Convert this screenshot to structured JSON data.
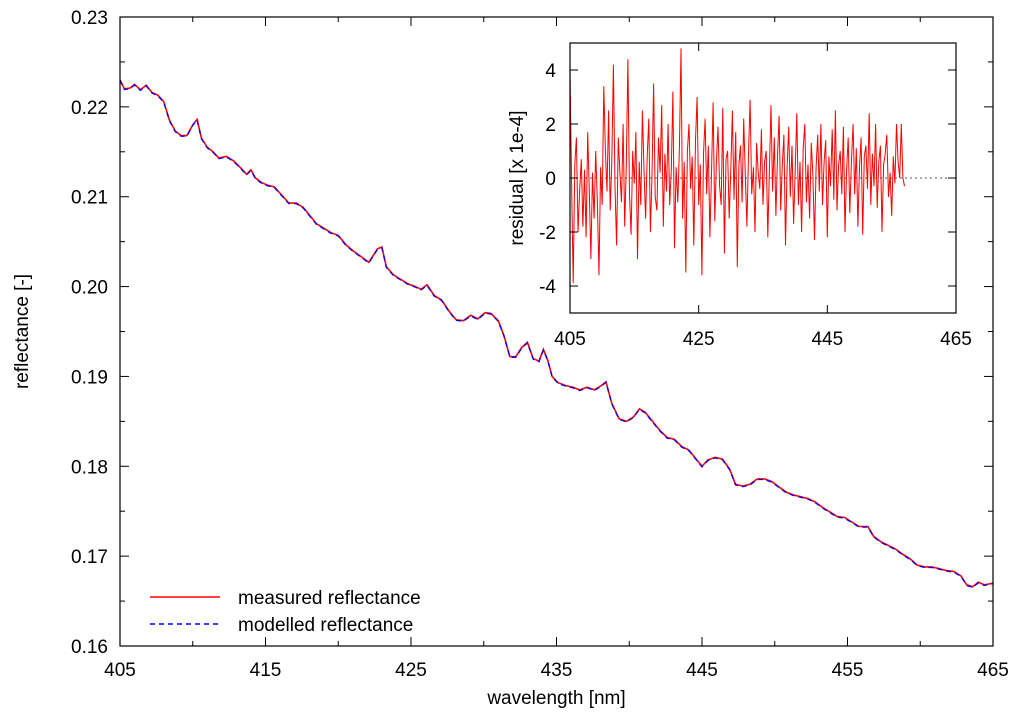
{
  "chart_data": [
    {
      "type": "line",
      "title": "",
      "xlabel": "wavelength [nm]",
      "ylabel": "reflectance  [-]",
      "xlim": [
        405,
        465
      ],
      "ylim": [
        0.16,
        0.23
      ],
      "x_ticks": [
        "405",
        "415",
        "425",
        "435",
        "445",
        "455",
        "465"
      ],
      "y_ticks": [
        "0.16",
        "0.17",
        "0.18",
        "0.19",
        "0.20",
        "0.21",
        "0.22",
        "0.23"
      ],
      "grid": false,
      "legend_position": "bottom-left",
      "colors": {
        "measured": "#ff0000",
        "modelled": "#0000ff"
      },
      "series": [
        {
          "name": "measured reflectance",
          "style": "solid",
          "color": "#ff0000",
          "points": [
            [
              405.0,
              0.223
            ],
            [
              405.3,
              0.222
            ],
            [
              405.7,
              0.2221
            ],
            [
              406.0,
              0.2225
            ],
            [
              406.4,
              0.2219
            ],
            [
              406.8,
              0.2224
            ],
            [
              407.2,
              0.2216
            ],
            [
              407.6,
              0.2213
            ],
            [
              408.0,
              0.2206
            ],
            [
              408.4,
              0.2185
            ],
            [
              408.8,
              0.2173
            ],
            [
              409.2,
              0.2168
            ],
            [
              409.6,
              0.2168
            ],
            [
              410.0,
              0.218
            ],
            [
              410.3,
              0.2186
            ],
            [
              410.6,
              0.2165
            ],
            [
              411.0,
              0.2155
            ],
            [
              411.4,
              0.215
            ],
            [
              411.8,
              0.2143
            ],
            [
              412.3,
              0.2145
            ],
            [
              412.8,
              0.214
            ],
            [
              413.3,
              0.2132
            ],
            [
              413.7,
              0.2125
            ],
            [
              414.0,
              0.213
            ],
            [
              414.3,
              0.2121
            ],
            [
              414.7,
              0.2116
            ],
            [
              415.1,
              0.2113
            ],
            [
              415.6,
              0.2111
            ],
            [
              416.1,
              0.2102
            ],
            [
              416.6,
              0.2093
            ],
            [
              417.1,
              0.2093
            ],
            [
              417.6,
              0.2088
            ],
            [
              418.1,
              0.2078
            ],
            [
              418.5,
              0.207
            ],
            [
              419.0,
              0.2065
            ],
            [
              419.5,
              0.206
            ],
            [
              420.0,
              0.2057
            ],
            [
              420.5,
              0.2047
            ],
            [
              421.0,
              0.204
            ],
            [
              421.6,
              0.2033
            ],
            [
              422.1,
              0.2027
            ],
            [
              422.7,
              0.2042
            ],
            [
              423.0,
              0.2044
            ],
            [
              423.3,
              0.2022
            ],
            [
              423.8,
              0.2013
            ],
            [
              424.3,
              0.2008
            ],
            [
              424.8,
              0.2003
            ],
            [
              425.3,
              0.2
            ],
            [
              425.7,
              0.1997
            ],
            [
              426.1,
              0.2002
            ],
            [
              426.6,
              0.199
            ],
            [
              427.1,
              0.1985
            ],
            [
              427.6,
              0.1973
            ],
            [
              428.1,
              0.1963
            ],
            [
              428.6,
              0.1962
            ],
            [
              429.1,
              0.1968
            ],
            [
              429.6,
              0.1964
            ],
            [
              430.1,
              0.1971
            ],
            [
              430.5,
              0.197
            ],
            [
              431.0,
              0.1962
            ],
            [
              431.4,
              0.1945
            ],
            [
              431.8,
              0.1922
            ],
            [
              432.2,
              0.1922
            ],
            [
              432.6,
              0.1932
            ],
            [
              433.0,
              0.1938
            ],
            [
              433.4,
              0.192
            ],
            [
              433.8,
              0.1917
            ],
            [
              434.1,
              0.193
            ],
            [
              434.4,
              0.1918
            ],
            [
              434.7,
              0.19
            ],
            [
              435.1,
              0.1893
            ],
            [
              435.6,
              0.189
            ],
            [
              436.1,
              0.1888
            ],
            [
              436.6,
              0.1885
            ],
            [
              437.1,
              0.1888
            ],
            [
              437.6,
              0.1885
            ],
            [
              438.1,
              0.189
            ],
            [
              438.4,
              0.1894
            ],
            [
              438.8,
              0.187
            ],
            [
              439.3,
              0.1853
            ],
            [
              439.8,
              0.185
            ],
            [
              440.3,
              0.1855
            ],
            [
              440.7,
              0.1864
            ],
            [
              441.1,
              0.186
            ],
            [
              441.6,
              0.185
            ],
            [
              442.1,
              0.184
            ],
            [
              442.6,
              0.1832
            ],
            [
              443.1,
              0.183
            ],
            [
              443.6,
              0.1822
            ],
            [
              444.1,
              0.1818
            ],
            [
              444.6,
              0.1808
            ],
            [
              445.0,
              0.18
            ],
            [
              445.4,
              0.1807
            ],
            [
              445.9,
              0.181
            ],
            [
              446.4,
              0.1808
            ],
            [
              446.9,
              0.1797
            ],
            [
              447.3,
              0.178
            ],
            [
              447.8,
              0.1778
            ],
            [
              448.3,
              0.178
            ],
            [
              448.8,
              0.1786
            ],
            [
              449.3,
              0.1786
            ],
            [
              449.8,
              0.1783
            ],
            [
              450.3,
              0.1777
            ],
            [
              450.8,
              0.1771
            ],
            [
              451.3,
              0.1768
            ],
            [
              451.8,
              0.1766
            ],
            [
              452.3,
              0.1764
            ],
            [
              452.8,
              0.176
            ],
            [
              453.3,
              0.1754
            ],
            [
              453.8,
              0.1749
            ],
            [
              454.3,
              0.1744
            ],
            [
              454.8,
              0.1743
            ],
            [
              455.3,
              0.1738
            ],
            [
              455.8,
              0.1733
            ],
            [
              456.4,
              0.1733
            ],
            [
              456.8,
              0.1722
            ],
            [
              457.3,
              0.1716
            ],
            [
              457.8,
              0.1712
            ],
            [
              458.3,
              0.1708
            ],
            [
              458.8,
              0.1702
            ],
            [
              459.3,
              0.1697
            ],
            [
              459.8,
              0.169
            ],
            [
              460.3,
              0.1688
            ],
            [
              460.8,
              0.1688
            ],
            [
              461.3,
              0.1686
            ],
            [
              461.8,
              0.1684
            ],
            [
              462.3,
              0.1683
            ],
            [
              462.8,
              0.1678
            ],
            [
              463.2,
              0.1668
            ],
            [
              463.6,
              0.1666
            ],
            [
              464.0,
              0.1671
            ],
            [
              464.4,
              0.1668
            ],
            [
              465.0,
              0.167
            ]
          ]
        },
        {
          "name": "modelled reflectance",
          "style": "dashed",
          "color": "#0000ff",
          "same_as": "measured reflectance"
        }
      ]
    },
    {
      "type": "line",
      "title": "",
      "xlabel": "",
      "ylabel": "residual  [x 1e-4]",
      "xlim": [
        405,
        465
      ],
      "ylim": [
        -5,
        5
      ],
      "x_ticks": [
        "405",
        "425",
        "445",
        "465"
      ],
      "y_ticks": [
        "4",
        "2",
        "0",
        "-2",
        "-4"
      ],
      "grid": false,
      "zero_line": "dotted",
      "series": [
        {
          "name": "",
          "color": "#ff0000",
          "values_x_start": 405,
          "values_x_step": 0.25,
          "values": [
            4.0,
            -0.2,
            -3.9,
            0.5,
            1.5,
            -2.0,
            -0.5,
            0.7,
            -1.8,
            0.3,
            -2.2,
            1.7,
            -0.5,
            -3.0,
            0.2,
            -1.5,
            1.0,
            -0.8,
            -3.6,
            0.4,
            -1.0,
            3.4,
            1.0,
            -0.5,
            2.5,
            -1.2,
            0.6,
            4.2,
            -0.3,
            -2.5,
            1.5,
            0.2,
            -0.9,
            2.0,
            -1.8,
            0.5,
            4.4,
            -0.6,
            -2.1,
            1.0,
            -0.2,
            1.7,
            -3.0,
            0.6,
            -1.0,
            2.5,
            0.3,
            -1.5,
            0.8,
            2.2,
            -2.0,
            0.1,
            3.5,
            -0.7,
            -1.2,
            1.5,
            0.2,
            2.7,
            -1.8,
            0.9,
            -0.5,
            2.0,
            -1.0,
            0.3,
            3.2,
            -2.6,
            0.4,
            -0.9,
            1.1,
            4.8,
            -1.5,
            0.6,
            -3.5,
            1.0,
            2.0,
            -0.4,
            0.8,
            -2.5,
            1.4,
            3.0,
            -1.0,
            0.5,
            -3.6,
            0.9,
            2.2,
            -0.6,
            1.2,
            -2.2,
            0.2,
            2.8,
            -1.6,
            0.6,
            1.9,
            -0.3,
            -1.0,
            2.6,
            -2.8,
            0.7,
            1.0,
            -1.5,
            0.3,
            2.5,
            -0.8,
            1.7,
            -3.3,
            0.5,
            1.2,
            -0.9,
            2.2,
            0.1,
            -1.8,
            0.9,
            2.9,
            -0.6,
            0.4,
            -2.0,
            1.3,
            0.2,
            -0.4,
            1.8,
            -1.0,
            0.6,
            1.0,
            -2.2,
            0.3,
            2.7,
            -0.5,
            1.5,
            -1.4,
            0.8,
            2.3,
            -1.2,
            0.5,
            1.6,
            -2.5,
            0.4,
            1.9,
            -0.7,
            1.2,
            -1.7,
            0.3,
            2.4,
            -1.0,
            0.6,
            -2.0,
            1.1,
            2.0,
            -0.9,
            0.5,
            -1.5,
            1.3,
            0.1,
            -2.3,
            0.4,
            1.6,
            -0.5,
            2.0,
            -1.0,
            0.6,
            1.4,
            -2.2,
            0.8,
            -0.3,
            1.8,
            -0.8,
            2.5,
            -1.2,
            0.5,
            1.0,
            -0.6,
            1.9,
            -2.0,
            0.3,
            1.5,
            -1.3,
            0.7,
            2.0,
            -0.6,
            1.1,
            -1.8,
            0.4,
            1.5,
            -2.1,
            0.8,
            1.2,
            -0.4,
            2.4,
            -1.0,
            0.9,
            -0.3,
            2.0,
            -1.1,
            0.6,
            1.2,
            -2.0,
            0.5,
            0.9,
            1.6,
            -0.7,
            0.2,
            -1.4,
            0.8,
            -0.2,
            2.0,
            0.6,
            0.0,
            2.0,
            0.0,
            -0.3
          ]
        }
      ]
    }
  ]
}
